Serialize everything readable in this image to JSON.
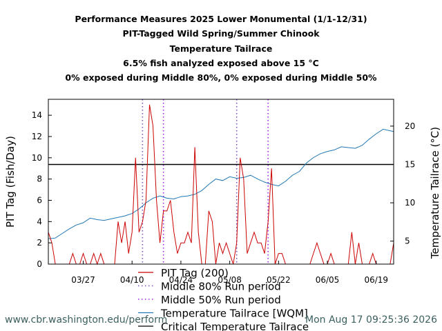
{
  "titles": {
    "line1": "Performance Measures 2025 Lower Monumental (1/1-12/31)",
    "line2": "PIT-Tagged Wild Spring/Summer Chinook",
    "line3": "Temperature Tailrace",
    "line4": "6.5% fish analyzed exposed above 15 °C",
    "line5": "0% exposed during Middle 80%, 0% exposed during Middle 50%"
  },
  "footer": {
    "url": "www.cbr.washington.edu/perform",
    "timestamp": "Mon Aug 17 09:25:36 2026"
  },
  "colors": {
    "pit": "#cc0000",
    "temp": "#1f77b4",
    "mid80": "#7a4fc2",
    "mid50": "#a020f0",
    "critical": "#000000"
  },
  "chart_data": {
    "type": "line",
    "ylabel": "PIT Tag (Fish/Day)",
    "y2label": "Temperature Tailrace (°C)",
    "ylim": [
      0,
      15.5
    ],
    "y2lim": [
      2,
      23.5
    ],
    "yticks": [
      0,
      2,
      4,
      6,
      8,
      10,
      12,
      14
    ],
    "y2ticks": [
      5,
      10,
      15,
      20
    ],
    "xlim": [
      "03/17",
      "06/24"
    ],
    "xticks": [
      {
        "date": "03/27",
        "label": "03/27"
      },
      {
        "date": "04/10",
        "label": "04/10"
      },
      {
        "date": "04/24",
        "label": "04/24"
      },
      {
        "date": "05/08",
        "label": "05/08"
      },
      {
        "date": "05/22",
        "label": "05/22"
      },
      {
        "date": "06/05",
        "label": "06/05"
      },
      {
        "date": "06/19",
        "label": "06/19"
      }
    ],
    "middle80": [
      "04/13",
      "05/10"
    ],
    "middle50": [
      "04/19",
      "05/19"
    ],
    "critical_temp": 15,
    "legend": [
      {
        "key": "pit",
        "label": "PIT Tag (200)",
        "style": "solid"
      },
      {
        "key": "mid80",
        "label": "Middle 80% Run period",
        "style": "dotted"
      },
      {
        "key": "mid50",
        "label": "Middle 50% Run period",
        "style": "dotted"
      },
      {
        "key": "temp",
        "label": "Temperature Tailrace [WQM]",
        "style": "solid"
      },
      {
        "key": "critical",
        "label": "Critical Temperature Tailrace",
        "style": "solid"
      }
    ],
    "pit_series": {
      "name": "PIT Tag (200)",
      "points": [
        [
          "03/17",
          3
        ],
        [
          "03/18",
          2
        ],
        [
          "03/19",
          0
        ],
        [
          "03/23",
          0
        ],
        [
          "03/24",
          1
        ],
        [
          "03/25",
          0
        ],
        [
          "03/26",
          0
        ],
        [
          "03/27",
          1
        ],
        [
          "03/28",
          0
        ],
        [
          "03/29",
          0
        ],
        [
          "03/30",
          1
        ],
        [
          "03/31",
          0
        ],
        [
          "04/01",
          1
        ],
        [
          "04/02",
          0
        ],
        [
          "04/05",
          0
        ],
        [
          "04/06",
          4
        ],
        [
          "04/07",
          2
        ],
        [
          "04/08",
          4
        ],
        [
          "04/09",
          1
        ],
        [
          "04/10",
          3
        ],
        [
          "04/11",
          10
        ],
        [
          "04/12",
          3
        ],
        [
          "04/13",
          4
        ],
        [
          "04/14",
          6
        ],
        [
          "04/15",
          15
        ],
        [
          "04/16",
          13
        ],
        [
          "04/17",
          6
        ],
        [
          "04/18",
          2
        ],
        [
          "04/19",
          5
        ],
        [
          "04/20",
          5
        ],
        [
          "04/21",
          6
        ],
        [
          "04/22",
          3
        ],
        [
          "04/23",
          1
        ],
        [
          "04/24",
          2
        ],
        [
          "04/25",
          2
        ],
        [
          "04/26",
          3
        ],
        [
          "04/27",
          2
        ],
        [
          "04/28",
          11
        ],
        [
          "04/29",
          3
        ],
        [
          "04/30",
          0
        ],
        [
          "05/01",
          0
        ],
        [
          "05/02",
          5
        ],
        [
          "05/03",
          4
        ],
        [
          "05/04",
          0
        ],
        [
          "05/05",
          2
        ],
        [
          "05/06",
          1
        ],
        [
          "05/07",
          2
        ],
        [
          "05/08",
          1
        ],
        [
          "05/09",
          0
        ],
        [
          "05/10",
          2
        ],
        [
          "05/11",
          10
        ],
        [
          "05/12",
          8
        ],
        [
          "05/13",
          1
        ],
        [
          "05/14",
          2
        ],
        [
          "05/15",
          3
        ],
        [
          "05/16",
          2
        ],
        [
          "05/17",
          2
        ],
        [
          "05/18",
          1
        ],
        [
          "05/19",
          4
        ],
        [
          "05/20",
          9
        ],
        [
          "05/21",
          0
        ],
        [
          "05/22",
          1
        ],
        [
          "05/23",
          1
        ],
        [
          "05/24",
          0
        ],
        [
          "05/31",
          0
        ],
        [
          "06/01",
          1
        ],
        [
          "06/02",
          2
        ],
        [
          "06/03",
          1
        ],
        [
          "06/04",
          0
        ],
        [
          "06/05",
          0
        ],
        [
          "06/06",
          1
        ],
        [
          "06/07",
          0
        ],
        [
          "06/11",
          0
        ],
        [
          "06/12",
          3
        ],
        [
          "06/13",
          0
        ],
        [
          "06/14",
          2
        ],
        [
          "06/15",
          0
        ],
        [
          "06/17",
          0
        ],
        [
          "06/18",
          1
        ],
        [
          "06/19",
          0
        ],
        [
          "06/23",
          0
        ],
        [
          "06/24",
          2
        ]
      ]
    },
    "temp_series": {
      "name": "Temperature Tailrace [WQM]",
      "points": [
        [
          "03/17",
          5.3
        ],
        [
          "03/19",
          5.4
        ],
        [
          "03/21",
          6.0
        ],
        [
          "03/23",
          6.6
        ],
        [
          "03/25",
          7.1
        ],
        [
          "03/27",
          7.4
        ],
        [
          "03/29",
          8.0
        ],
        [
          "03/31",
          7.8
        ],
        [
          "04/02",
          7.7
        ],
        [
          "04/04",
          7.9
        ],
        [
          "04/06",
          8.1
        ],
        [
          "04/08",
          8.3
        ],
        [
          "04/10",
          8.6
        ],
        [
          "04/12",
          9.2
        ],
        [
          "04/14",
          10.0
        ],
        [
          "04/16",
          10.6
        ],
        [
          "04/18",
          10.9
        ],
        [
          "04/20",
          10.6
        ],
        [
          "04/22",
          10.5
        ],
        [
          "04/24",
          10.8
        ],
        [
          "04/26",
          10.9
        ],
        [
          "04/28",
          11.1
        ],
        [
          "04/30",
          11.6
        ],
        [
          "05/02",
          12.4
        ],
        [
          "05/04",
          13.1
        ],
        [
          "05/06",
          12.9
        ],
        [
          "05/08",
          13.4
        ],
        [
          "05/10",
          13.2
        ],
        [
          "05/12",
          13.3
        ],
        [
          "05/14",
          13.6
        ],
        [
          "05/16",
          13.1
        ],
        [
          "05/18",
          12.7
        ],
        [
          "05/20",
          12.4
        ],
        [
          "05/22",
          12.2
        ],
        [
          "05/24",
          12.8
        ],
        [
          "05/26",
          13.6
        ],
        [
          "05/28",
          14.1
        ],
        [
          "05/30",
          15.2
        ],
        [
          "06/01",
          15.9
        ],
        [
          "06/03",
          16.4
        ],
        [
          "06/05",
          16.7
        ],
        [
          "06/07",
          16.9
        ],
        [
          "06/09",
          17.3
        ],
        [
          "06/11",
          17.2
        ],
        [
          "06/13",
          17.1
        ],
        [
          "06/15",
          17.5
        ],
        [
          "06/17",
          18.3
        ],
        [
          "06/19",
          19.0
        ],
        [
          "06/21",
          19.6
        ],
        [
          "06/24",
          19.3
        ]
      ]
    }
  }
}
